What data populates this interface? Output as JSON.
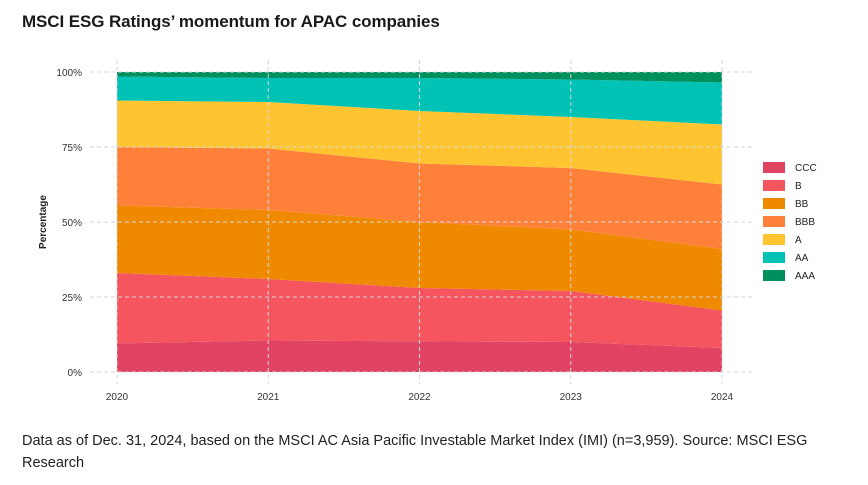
{
  "title": "MSCI ESG Ratings’ momentum for APAC companies",
  "footer": "Data as of Dec. 31, 2024, based on the MSCI AC Asia Pacific Investable Market Index (IMI) (n=3,959). Source: MSCI ESG Research",
  "colors": {
    "CCC": "#e04462",
    "B": "#f5555f",
    "BB": "#ef8a00",
    "BBB": "#ff8139",
    "A": "#ffc530",
    "AA": "#00c3b6",
    "AAA": "#00905e"
  },
  "chart_data": {
    "type": "area",
    "stacked": true,
    "x": [
      "2020",
      "2021",
      "2022",
      "2023",
      "2024"
    ],
    "ylabel": "Percentage",
    "xlabel": "",
    "ylim": [
      0,
      100
    ],
    "yticks": [
      "0%",
      "25%",
      "50%",
      "75%",
      "100%"
    ],
    "legend_position": "right",
    "grid": true,
    "series": [
      {
        "name": "CCC",
        "values": [
          9.5,
          10.5,
          10.2,
          10.0,
          8.0
        ]
      },
      {
        "name": "B",
        "values": [
          23.5,
          20.5,
          17.8,
          17.0,
          12.5
        ]
      },
      {
        "name": "BB",
        "values": [
          22.5,
          23.0,
          22.0,
          20.5,
          20.5
        ]
      },
      {
        "name": "BBB",
        "values": [
          19.5,
          20.5,
          19.5,
          20.5,
          21.5
        ]
      },
      {
        "name": "A",
        "values": [
          15.5,
          15.5,
          17.5,
          17.0,
          20.0
        ]
      },
      {
        "name": "AA",
        "values": [
          8.0,
          8.0,
          11.0,
          12.5,
          14.0
        ]
      },
      {
        "name": "AAA",
        "values": [
          1.5,
          2.0,
          2.0,
          2.5,
          3.5
        ]
      }
    ]
  }
}
